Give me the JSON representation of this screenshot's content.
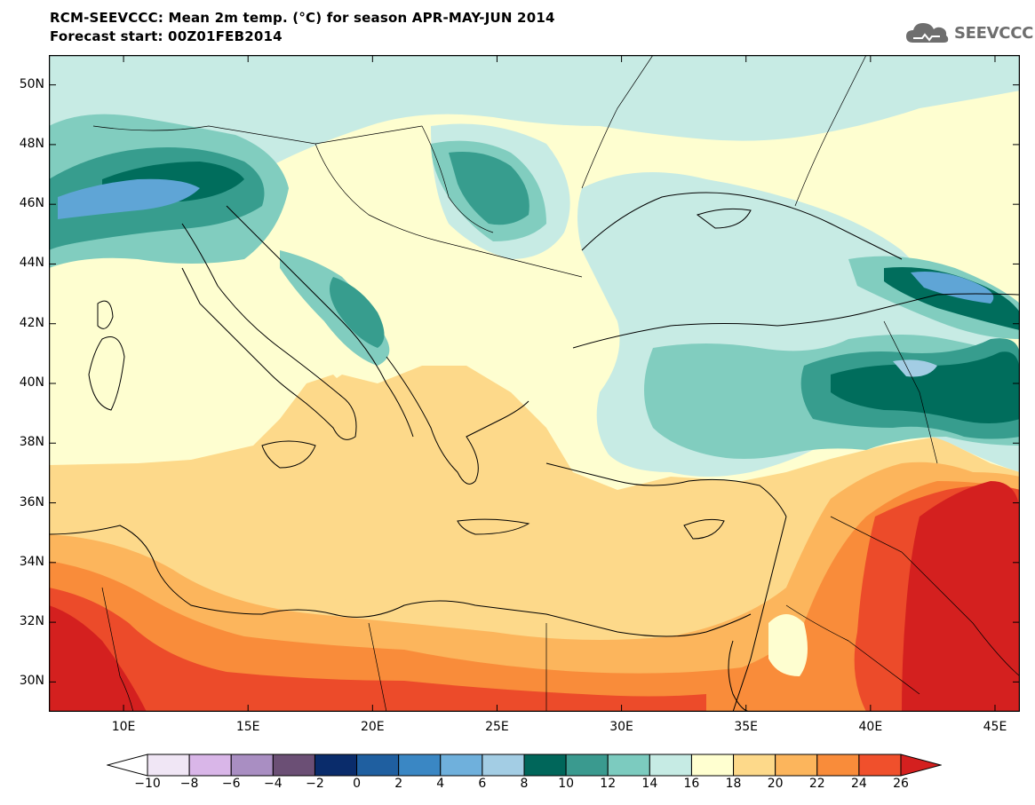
{
  "header": {
    "title": "RCM-SEEVCCC: Mean 2m temp. (°C) for season APR-MAY-JUN 2014",
    "subtitle": "Forecast start: 00Z01FEB2014"
  },
  "logo": {
    "text": "SEEVCCC",
    "icon": "cloud-icon",
    "color": "#6e6e6e"
  },
  "map": {
    "projection": "lat-lon",
    "lon_range": [
      7,
      46
    ],
    "lat_range": [
      29,
      51
    ],
    "lat_ticks": [
      {
        "value": 50,
        "label": "50N"
      },
      {
        "value": 48,
        "label": "48N"
      },
      {
        "value": 46,
        "label": "46N"
      },
      {
        "value": 44,
        "label": "44N"
      },
      {
        "value": 42,
        "label": "42N"
      },
      {
        "value": 40,
        "label": "40N"
      },
      {
        "value": 38,
        "label": "38N"
      },
      {
        "value": 36,
        "label": "36N"
      },
      {
        "value": 34,
        "label": "34N"
      },
      {
        "value": 32,
        "label": "32N"
      },
      {
        "value": 30,
        "label": "30N"
      }
    ],
    "lon_ticks": [
      {
        "value": 10,
        "label": "10E"
      },
      {
        "value": 15,
        "label": "15E"
      },
      {
        "value": 20,
        "label": "20E"
      },
      {
        "value": 25,
        "label": "25E"
      },
      {
        "value": 30,
        "label": "30E"
      },
      {
        "value": 35,
        "label": "35E"
      },
      {
        "value": 40,
        "label": "40E"
      },
      {
        "value": 45,
        "label": "45E"
      }
    ]
  },
  "colorbar": {
    "labels": [
      "−10",
      "−8",
      "−6",
      "−4",
      "−2",
      "0",
      "2",
      "4",
      "6",
      "8",
      "10",
      "12",
      "14",
      "16",
      "18",
      "20",
      "22",
      "24",
      "26"
    ],
    "colors": [
      "#ffffff",
      "#f0e6f5",
      "#d9b6e8",
      "#a98ec2",
      "#6b4f75",
      "#0a2c6b",
      "#1f5fa0",
      "#3a87c4",
      "#6fb0dc",
      "#a3cde4",
      "#00665a",
      "#3a9a8f",
      "#7ccbbf",
      "#c6ebe4",
      "#ffffd0",
      "#fdd98a",
      "#fcb55c",
      "#f98c3a",
      "#f0502c",
      "#d4201f"
    ]
  },
  "field_colors": {
    "c10": "#006d5c",
    "c12": "#379d8e",
    "c14": "#81cdbf",
    "c16": "#c7ebe4",
    "c18": "#fefed0",
    "c20": "#fdd98a",
    "c22": "#fcb55c",
    "c24": "#f98c3a",
    "c26": "#ec4b2a",
    "c28": "#d4201f",
    "c8": "#a3cde4",
    "c6": "#5fa5d6"
  }
}
